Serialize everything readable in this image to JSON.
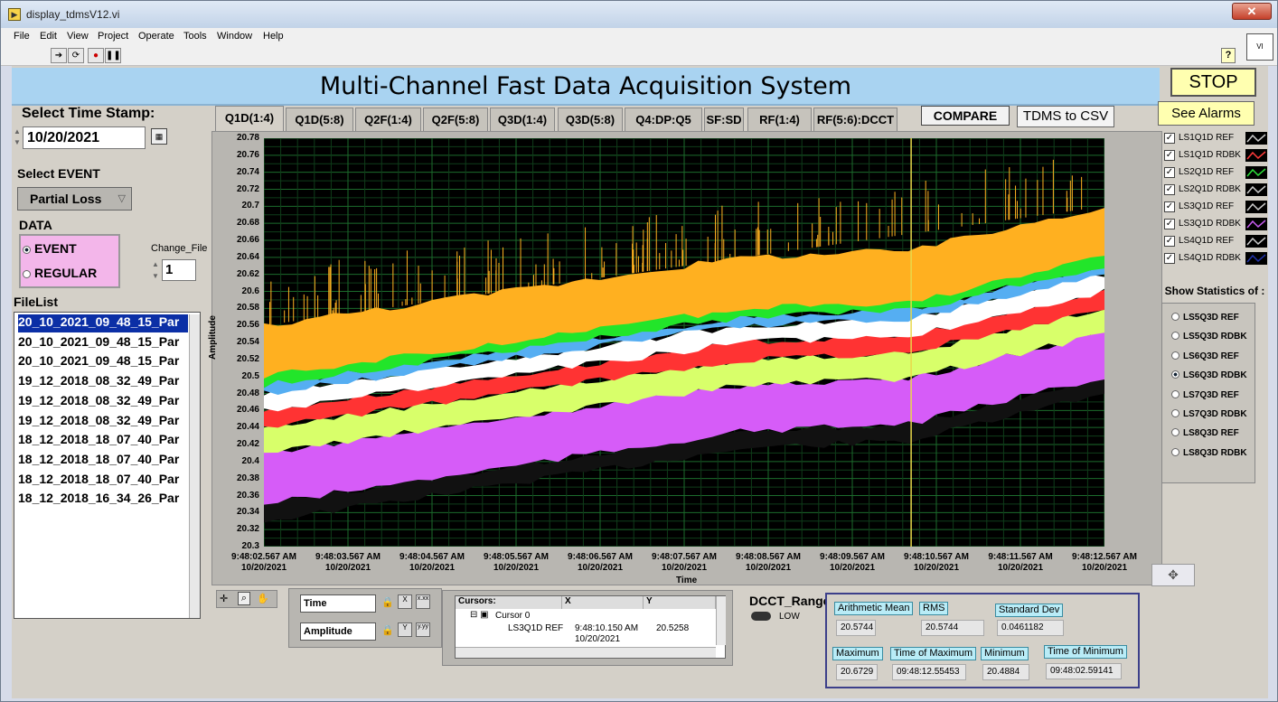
{
  "window": {
    "title": "display_tdmsV12.vi",
    "close": "✕"
  },
  "menu": [
    "File",
    "Edit",
    "View",
    "Project",
    "Operate",
    "Tools",
    "Window",
    "Help"
  ],
  "panel": {
    "title": "Multi-Channel Fast Data Acquisition System",
    "stop_label": "STOP",
    "see_alarms_label": "See Alarms",
    "compare_label": "COMPARE",
    "tdms_csv_label": "TDMS to CSV"
  },
  "left": {
    "select_time_label": "Select Time Stamp:",
    "date_value": "10/20/2021",
    "select_event_label": "Select EVENT",
    "event_value": "Partial Loss",
    "data_label": "DATA",
    "data_options": [
      "EVENT",
      "REGULAR"
    ],
    "data_selected": "EVENT",
    "change_file_label": "Change_File",
    "change_file_value": "1",
    "filelist_label": "FileList",
    "files": [
      "20_10_2021_09_48_15_Par",
      "20_10_2021_09_48_15_Par",
      "20_10_2021_09_48_15_Par",
      "19_12_2018_08_32_49_Par",
      "19_12_2018_08_32_49_Par",
      "19_12_2018_08_32_49_Par",
      "18_12_2018_18_07_40_Par",
      "18_12_2018_18_07_40_Par",
      "18_12_2018_18_07_40_Par",
      "18_12_2018_16_34_26_Par"
    ]
  },
  "tabs": [
    "Q1D(1:4)",
    "Q1D(5:8)",
    "Q2F(1:4)",
    "Q2F(5:8)",
    "Q3D(1:4)",
    "Q3D(5:8)",
    "Q4:DP:Q5",
    "SF:SD",
    "RF(1:4)",
    "RF(5:6):DCCT"
  ],
  "active_tab": "Q1D(1:4)",
  "legend": [
    {
      "name": "LS1Q1D REF",
      "color": "#000000"
    },
    {
      "name": "LS1Q1D RDBK",
      "color": "#ff3b3b"
    },
    {
      "name": "LS2Q1D REF",
      "color": "#2ce03a"
    },
    {
      "name": "LS2Q1D RDBK",
      "color": "#000000"
    },
    {
      "name": "LS3Q1D REF",
      "color": "#000000"
    },
    {
      "name": "LS3Q1D RDBK",
      "color": "#c65cf0"
    },
    {
      "name": "LS4Q1D REF",
      "color": "#000000"
    },
    {
      "name": "LS4Q1D RDBK",
      "color": "#2233aa"
    }
  ],
  "stats_of": {
    "label": "Show Statistics of :",
    "options": [
      "LS5Q3D REF",
      "LS5Q3D RDBK",
      "LS6Q3D REF",
      "LS6Q3D RDBK",
      "LS7Q3D REF",
      "LS7Q3D RDBK",
      "LS8Q3D REF",
      "LS8Q3D RDBK"
    ],
    "selected": "LS6Q3D RDBK"
  },
  "chart_data": {
    "type": "line",
    "xlabel": "Time",
    "ylabel": "Amplitude",
    "ylim": [
      20.3,
      20.78
    ],
    "y_ticks": [
      "20.78",
      "20.76",
      "20.74",
      "20.72",
      "20.7",
      "20.68",
      "20.66",
      "20.64",
      "20.62",
      "20.6",
      "20.58",
      "20.56",
      "20.54",
      "20.52",
      "20.5",
      "20.48",
      "20.46",
      "20.44",
      "20.42",
      "20.4",
      "20.38",
      "20.36",
      "20.34",
      "20.32",
      "20.3"
    ],
    "x_ticks": [
      [
        "9:48:02.567 AM",
        "10/20/2021"
      ],
      [
        "9:48:03.567 AM",
        "10/20/2021"
      ],
      [
        "9:48:04.567 AM",
        "10/20/2021"
      ],
      [
        "9:48:05.567 AM",
        "10/20/2021"
      ],
      [
        "9:48:06.567 AM",
        "10/20/2021"
      ],
      [
        "9:48:07.567 AM",
        "10/20/2021"
      ],
      [
        "9:48:08.567 AM",
        "10/20/2021"
      ],
      [
        "9:48:09.567 AM",
        "10/20/2021"
      ],
      [
        "9:48:10.567 AM",
        "10/20/2021"
      ],
      [
        "9:48:11.567 AM",
        "10/20/2021"
      ],
      [
        "9:48:12.567 AM",
        "10/20/2021"
      ]
    ],
    "grid": true,
    "background": "#000000",
    "bands": [
      {
        "color": "#ffb020",
        "start": [
          20.5,
          20.56
        ],
        "end": [
          20.64,
          20.7
        ]
      },
      {
        "color": "#22e52a",
        "start": [
          20.49,
          20.51
        ],
        "end": [
          20.63,
          20.66
        ]
      },
      {
        "color": "#55aef2",
        "start": [
          20.48,
          20.49
        ],
        "end": [
          20.62,
          20.63
        ]
      },
      {
        "color": "#ffffff",
        "start": [
          20.46,
          20.48
        ],
        "end": [
          20.6,
          20.62
        ]
      },
      {
        "color": "#ff3333",
        "start": [
          20.44,
          20.46
        ],
        "end": [
          20.58,
          20.6
        ]
      },
      {
        "color": "#d8ff6a",
        "start": [
          20.41,
          20.44
        ],
        "end": [
          20.55,
          20.58
        ]
      },
      {
        "color": "#d65cf8",
        "start": [
          20.35,
          20.41
        ],
        "end": [
          20.5,
          20.55
        ]
      },
      {
        "color": "#111111",
        "start": [
          20.33,
          20.35
        ],
        "end": [
          20.48,
          20.5
        ]
      }
    ],
    "cursor_x_fraction": 0.77
  },
  "axes": {
    "x_name": "Time",
    "y_name": "Amplitude"
  },
  "cursors": {
    "headers": [
      "Cursors:",
      "X",
      "Y"
    ],
    "name": "Cursor 0",
    "plot": "LS3Q1D REF",
    "x": "9:48:10.150 AM",
    "x_date": "10/20/2021",
    "y": "20.5258"
  },
  "dcct": {
    "label": "DCCT_Range",
    "value": "LOW"
  },
  "stats": {
    "mean_label": "Arithmetic Mean",
    "mean": "20.5744",
    "rms_label": "RMS",
    "rms": "20.5744",
    "std_label": "Standard Dev",
    "std": "0.0461182",
    "max_label": "Maximum",
    "max": "20.6729",
    "tmax_label": "Time of Maximum",
    "tmax": "09:48:12.55453",
    "min_label": "Minimum",
    "min": "20.4884",
    "tmin_label": "Time of Minimum",
    "tmin": "09:48:02.59141"
  }
}
